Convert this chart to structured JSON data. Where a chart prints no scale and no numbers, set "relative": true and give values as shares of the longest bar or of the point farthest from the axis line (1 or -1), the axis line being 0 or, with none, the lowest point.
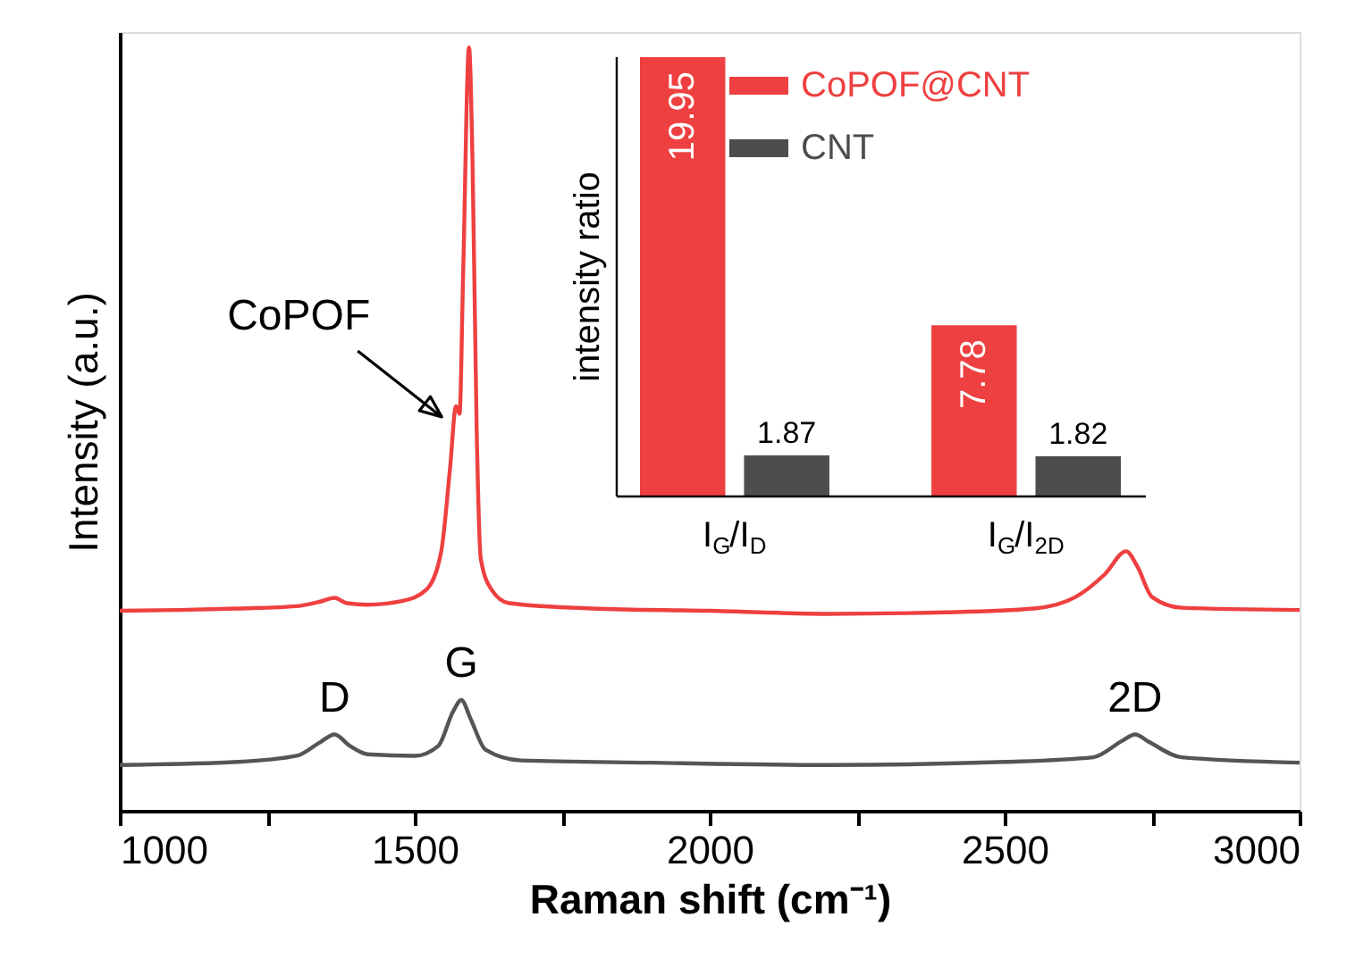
{
  "chart_data": [
    {
      "type": "line",
      "xlabel": "Raman shift (cm⁻¹)",
      "ylabel": "Intensity (a.u.)",
      "relative": true,
      "grid": false,
      "xlim": [
        1000,
        3000
      ],
      "xticks": [
        1000,
        {
          "value": 1250,
          "label": null
        },
        1500,
        {
          "value": 1750,
          "label": null
        },
        2000,
        {
          "value": 2250,
          "label": null
        },
        2500,
        {
          "value": 2750,
          "label": null
        },
        3000
      ],
      "series": [
        {
          "color": "#ee4040",
          "x": [
            1000,
            1100,
            1200,
            1300,
            1340,
            1364,
            1385,
            1420,
            1480,
            1520,
            1545,
            1560,
            1570,
            1576,
            1582,
            1592,
            1598,
            1605,
            1612,
            1630,
            1660,
            1800,
            2000,
            2200,
            2400,
            2550,
            2620,
            2670,
            2706,
            2725,
            2750,
            2800,
            3000
          ],
          "values": [
            0.262,
            0.263,
            0.265,
            0.268,
            0.274,
            0.279,
            0.272,
            0.27,
            0.275,
            0.29,
            0.34,
            0.45,
            0.53,
            0.52,
            0.7,
            1.0,
            0.85,
            0.5,
            0.33,
            0.29,
            0.272,
            0.265,
            0.262,
            0.258,
            0.26,
            0.265,
            0.28,
            0.31,
            0.34,
            0.32,
            0.28,
            0.266,
            0.263
          ]
        },
        {
          "color": "#555555",
          "x": [
            1000,
            1200,
            1300,
            1340,
            1364,
            1390,
            1420,
            1500,
            1540,
            1565,
            1579,
            1595,
            1620,
            1680,
            1900,
            2200,
            2500,
            2650,
            2700,
            2721,
            2745,
            2800,
            3000
          ],
          "values": [
            0.06,
            0.064,
            0.072,
            0.09,
            0.1,
            0.085,
            0.074,
            0.072,
            0.085,
            0.13,
            0.145,
            0.12,
            0.08,
            0.066,
            0.063,
            0.06,
            0.064,
            0.07,
            0.092,
            0.1,
            0.09,
            0.07,
            0.063
          ]
        }
      ],
      "annotations": [
        {
          "text": "CoPOF",
          "x": 1570,
          "y": 0.53
        },
        {
          "text": "D",
          "x": 1364,
          "y": 0.1
        },
        {
          "text": "G",
          "x": 1579,
          "y": 0.145
        },
        {
          "text": "2D",
          "x": 2721,
          "y": 0.1
        }
      ]
    },
    {
      "type": "bar",
      "ylabel": "intensity ratio",
      "categories": [
        "I$_{G}$/I$_{D}$",
        "I$_{G}$/I$_{2D}$"
      ],
      "data_labels": true,
      "legend": "top",
      "series": [
        {
          "name": "CoPOF@CNT",
          "color": "#ee4040",
          "values": [
            19.95,
            7.78
          ]
        },
        {
          "name": "CNT",
          "color": "#4d4d4d",
          "values": [
            1.87,
            1.82
          ]
        }
      ]
    }
  ]
}
